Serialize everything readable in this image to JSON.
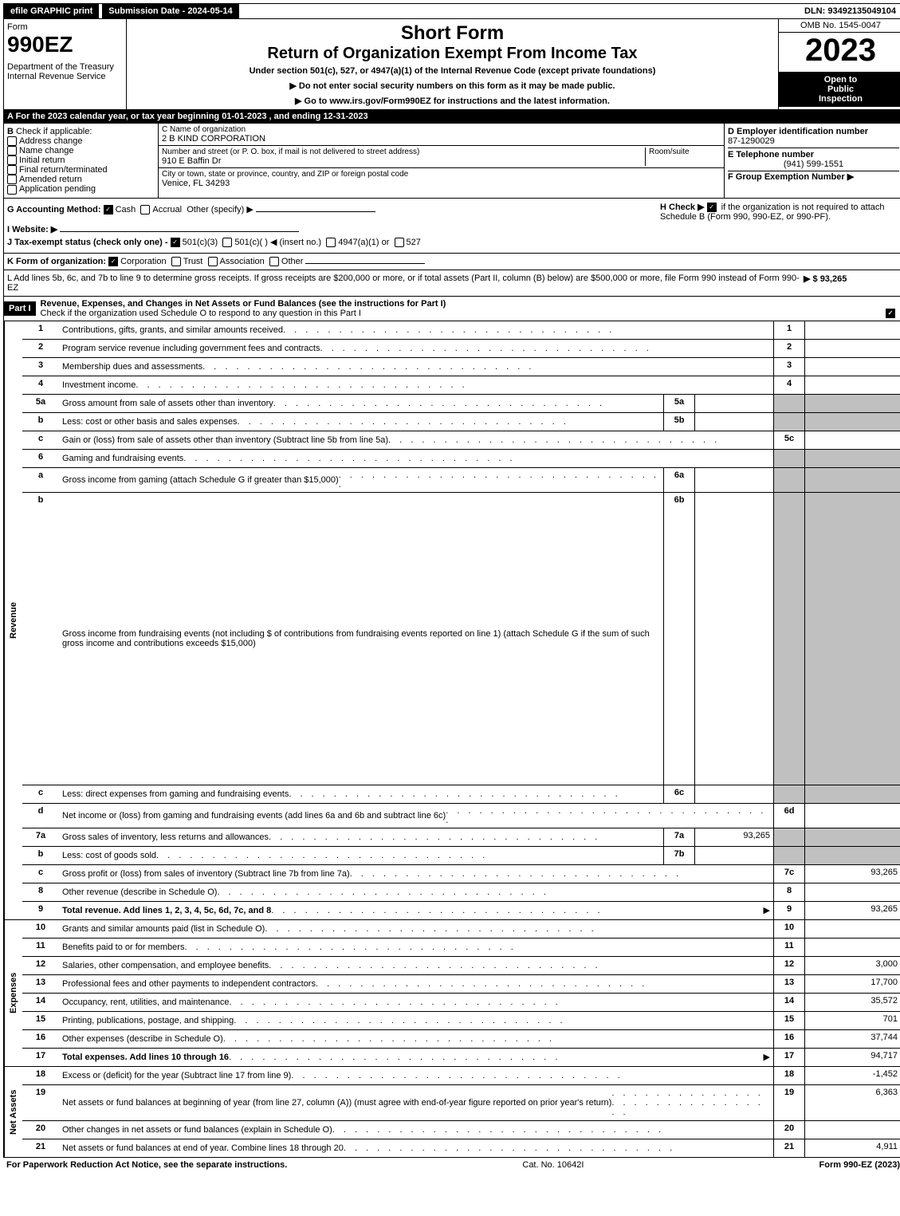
{
  "topbar": {
    "efile": "efile GRAPHIC print",
    "submission": "Submission Date - 2024-05-14",
    "dln": "DLN: 93492135049104"
  },
  "header": {
    "form_word": "Form",
    "form_number": "990EZ",
    "dept": "Department of the Treasury",
    "irs": "Internal Revenue Service",
    "short_form": "Short Form",
    "title": "Return of Organization Exempt From Income Tax",
    "subtitle": "Under section 501(c), 527, or 4947(a)(1) of the Internal Revenue Code (except private foundations)",
    "warn1": "▶ Do not enter social security numbers on this form as it may be made public.",
    "warn2": "▶ Go to www.irs.gov/Form990EZ for instructions and the latest information.",
    "omb": "OMB No. 1545-0047",
    "year": "2023",
    "open1": "Open to",
    "open2": "Public",
    "open3": "Inspection"
  },
  "sectionA": "A  For the 2023 calendar year, or tax year beginning 01-01-2023 , and ending 12-31-2023",
  "B": {
    "label": "B",
    "check_if": "Check if applicable:",
    "addr_change": "Address change",
    "name_change": "Name change",
    "initial": "Initial return",
    "final": "Final return/terminated",
    "amended": "Amended return",
    "pending": "Application pending"
  },
  "C": {
    "name_label": "C Name of organization",
    "name": "2 B KIND CORPORATION",
    "street_label": "Number and street (or P. O. box, if mail is not delivered to street address)",
    "room_label": "Room/suite",
    "street": "910 E Baffin Dr",
    "city_label": "City or town, state or province, country, and ZIP or foreign postal code",
    "city": "Venice, FL  34293"
  },
  "D": {
    "ein_label": "D Employer identification number",
    "ein": "87-1290029",
    "phone_label": "E Telephone number",
    "phone": "(941) 599-1551",
    "group_label": "F Group Exemption Number  ▶"
  },
  "misc": {
    "G_label": "G Accounting Method:",
    "G_cash": "Cash",
    "G_accrual": "Accrual",
    "G_other": "Other (specify) ▶",
    "H_label": "H  Check ▶",
    "H_text": "if the organization is not required to attach Schedule B (Form 990, 990-EZ, or 990-PF).",
    "I_label": "I Website: ▶",
    "J_label": "J Tax-exempt status (check only one) -",
    "J_501c3": "501(c)(3)",
    "J_501c": "501(c)(  ) ◀ (insert no.)",
    "J_4947": "4947(a)(1) or",
    "J_527": "527",
    "K_label": "K Form of organization:",
    "K_corp": "Corporation",
    "K_trust": "Trust",
    "K_assoc": "Association",
    "K_other": "Other",
    "L_text": "L Add lines 5b, 6c, and 7b to line 9 to determine gross receipts. If gross receipts are $200,000 or more, or if total assets (Part II, column (B) below) are $500,000 or more, file Form 990 instead of Form 990-EZ",
    "L_amount": "▶ $ 93,265"
  },
  "part1": {
    "label": "Part I",
    "title": "Revenue, Expenses, and Changes in Net Assets or Fund Balances (see the instructions for Part I)",
    "check_text": "Check if the organization used Schedule O to respond to any question in this Part I"
  },
  "sidelabels": {
    "revenue": "Revenue",
    "expenses": "Expenses",
    "netassets": "Net Assets"
  },
  "revenue_lines": [
    {
      "num": "1",
      "desc": "Contributions, gifts, grants, and similar amounts received",
      "box": "1",
      "amt": ""
    },
    {
      "num": "2",
      "desc": "Program service revenue including government fees and contracts",
      "box": "2",
      "amt": ""
    },
    {
      "num": "3",
      "desc": "Membership dues and assessments",
      "box": "3",
      "amt": ""
    },
    {
      "num": "4",
      "desc": "Investment income",
      "box": "4",
      "amt": ""
    },
    {
      "num": "5a",
      "desc": "Gross amount from sale of assets other than inventory",
      "sub": "5a",
      "subval": "",
      "shaded": true
    },
    {
      "num": "b",
      "desc": "Less: cost or other basis and sales expenses",
      "sub": "5b",
      "subval": "",
      "shaded": true
    },
    {
      "num": "c",
      "desc": "Gain or (loss) from sale of assets other than inventory (Subtract line 5b from line 5a)",
      "box": "5c",
      "amt": ""
    },
    {
      "num": "6",
      "desc": "Gaming and fundraising events",
      "shaded": true,
      "nobox": true
    },
    {
      "num": "a",
      "desc": "Gross income from gaming (attach Schedule G if greater than $15,000)",
      "sub": "6a",
      "subval": "",
      "shaded": true
    },
    {
      "num": "b",
      "desc": "Gross income from fundraising events (not including $                    of contributions from fundraising events reported on line 1) (attach Schedule G if the sum of such gross income and contributions exceeds $15,000)",
      "sub": "6b",
      "subval": "",
      "shaded": true,
      "tall": true
    },
    {
      "num": "c",
      "desc": "Less: direct expenses from gaming and fundraising events",
      "sub": "6c",
      "subval": "",
      "shaded": true
    },
    {
      "num": "d",
      "desc": "Net income or (loss) from gaming and fundraising events (add lines 6a and 6b and subtract line 6c)",
      "box": "6d",
      "amt": ""
    },
    {
      "num": "7a",
      "desc": "Gross sales of inventory, less returns and allowances",
      "sub": "7a",
      "subval": "93,265",
      "shaded": true
    },
    {
      "num": "b",
      "desc": "Less: cost of goods sold",
      "sub": "7b",
      "subval": "",
      "shaded": true
    },
    {
      "num": "c",
      "desc": "Gross profit or (loss) from sales of inventory (Subtract line 7b from line 7a)",
      "box": "7c",
      "amt": "93,265"
    },
    {
      "num": "8",
      "desc": "Other revenue (describe in Schedule O)",
      "box": "8",
      "amt": ""
    },
    {
      "num": "9",
      "desc": "Total revenue. Add lines 1, 2, 3, 4, 5c, 6d, 7c, and 8",
      "box": "9",
      "amt": "93,265",
      "bold": true,
      "arrow": true
    }
  ],
  "expense_lines": [
    {
      "num": "10",
      "desc": "Grants and similar amounts paid (list in Schedule O)",
      "box": "10",
      "amt": ""
    },
    {
      "num": "11",
      "desc": "Benefits paid to or for members",
      "box": "11",
      "amt": ""
    },
    {
      "num": "12",
      "desc": "Salaries, other compensation, and employee benefits",
      "box": "12",
      "amt": "3,000"
    },
    {
      "num": "13",
      "desc": "Professional fees and other payments to independent contractors",
      "box": "13",
      "amt": "17,700"
    },
    {
      "num": "14",
      "desc": "Occupancy, rent, utilities, and maintenance",
      "box": "14",
      "amt": "35,572"
    },
    {
      "num": "15",
      "desc": "Printing, publications, postage, and shipping",
      "box": "15",
      "amt": "701"
    },
    {
      "num": "16",
      "desc": "Other expenses (describe in Schedule O)",
      "box": "16",
      "amt": "37,744"
    },
    {
      "num": "17",
      "desc": "Total expenses. Add lines 10 through 16",
      "box": "17",
      "amt": "94,717",
      "bold": true,
      "arrow": true
    }
  ],
  "netasset_lines": [
    {
      "num": "18",
      "desc": "Excess or (deficit) for the year (Subtract line 17 from line 9)",
      "box": "18",
      "amt": "-1,452"
    },
    {
      "num": "19",
      "desc": "Net assets or fund balances at beginning of year (from line 27, column (A)) (must agree with end-of-year figure reported on prior year's return)",
      "box": "19",
      "amt": "6,363",
      "tall": true
    },
    {
      "num": "20",
      "desc": "Other changes in net assets or fund balances (explain in Schedule O)",
      "box": "20",
      "amt": ""
    },
    {
      "num": "21",
      "desc": "Net assets or fund balances at end of year. Combine lines 18 through 20",
      "box": "21",
      "amt": "4,911"
    }
  ],
  "footer": {
    "left": "For Paperwork Reduction Act Notice, see the separate instructions.",
    "mid": "Cat. No. 10642I",
    "right": "Form 990-EZ (2023)"
  }
}
